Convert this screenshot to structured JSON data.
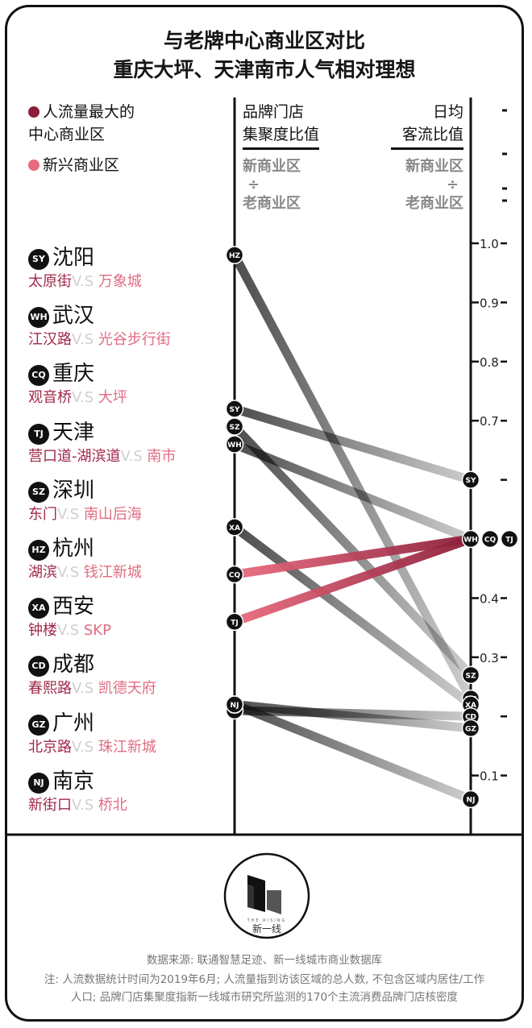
{
  "header": {
    "title_line1": "与老牌中心商业区对比",
    "title_line2": "重庆大坪、天津南市人气相对理想"
  },
  "legend": {
    "old_label_line1": "人流量最大的",
    "old_label_line2": "中心商业区",
    "new_label": "新兴商业区",
    "old_color": "#8b1e3a",
    "new_color": "#ea6a7e"
  },
  "columns": {
    "left_title_line1": "品牌门店",
    "left_title_line2": "集聚度比值",
    "right_title_line1": "日均",
    "right_title_line2": "客流比值",
    "numerator": "新商业区",
    "divide": "÷",
    "denominator": "老商业区"
  },
  "cities": [
    {
      "code": "SY",
      "name": "沈阳",
      "old": "太原街",
      "vs": "V.S",
      "new": "万象城"
    },
    {
      "code": "WH",
      "name": "武汉",
      "old": "江汉路",
      "vs": "V.S",
      "new": "光谷步行街"
    },
    {
      "code": "CQ",
      "name": "重庆",
      "old": "观音桥",
      "vs": "V.S",
      "new": "大坪"
    },
    {
      "code": "TJ",
      "name": "天津",
      "old": "营口道-湖滨道",
      "vs": "V.S",
      "new": "南市"
    },
    {
      "code": "SZ",
      "name": "深圳",
      "old": "东门",
      "vs": "V.S",
      "new": "南山后海"
    },
    {
      "code": "HZ",
      "name": "杭州",
      "old": "湖滨",
      "vs": "V.S",
      "new": "钱江新城"
    },
    {
      "code": "XA",
      "name": "西安",
      "old": "钟楼",
      "vs": "V.S",
      "new": "SKP"
    },
    {
      "code": "CD",
      "name": "成都",
      "old": "春熙路",
      "vs": "V.S",
      "new": "凯德天府"
    },
    {
      "code": "GZ",
      "name": "广州",
      "old": "北京路",
      "vs": "V.S",
      "new": "珠江新城"
    },
    {
      "code": "NJ",
      "name": "南京",
      "old": "新街口",
      "vs": "V.S",
      "new": "桥北"
    }
  ],
  "chart_data": {
    "type": "line",
    "axis_ticks": [
      0.1,
      0.3,
      0.4,
      0.7,
      0.8,
      0.9,
      1.0
    ],
    "axis_tick_labels": [
      "0.1",
      "0.3",
      "0.4",
      "0.7",
      "0.8",
      "0.9",
      "1.0"
    ],
    "ylim": [
      0,
      1.05
    ],
    "series": [
      {
        "code": "SY",
        "store_ratio": 0.72,
        "traffic_ratio": 0.6,
        "highlight": false
      },
      {
        "code": "WH",
        "store_ratio": 0.66,
        "traffic_ratio": 0.5,
        "highlight": false
      },
      {
        "code": "CQ",
        "store_ratio": 0.44,
        "traffic_ratio": 0.5,
        "highlight": true
      },
      {
        "code": "TJ",
        "store_ratio": 0.36,
        "traffic_ratio": 0.5,
        "highlight": true
      },
      {
        "code": "SZ",
        "store_ratio": 0.69,
        "traffic_ratio": 0.27,
        "highlight": false
      },
      {
        "code": "HZ",
        "store_ratio": 0.98,
        "traffic_ratio": 0.23,
        "highlight": false
      },
      {
        "code": "XA",
        "store_ratio": 0.52,
        "traffic_ratio": 0.22,
        "highlight": false
      },
      {
        "code": "CD",
        "store_ratio": 0.21,
        "traffic_ratio": 0.2,
        "highlight": false
      },
      {
        "code": "GZ",
        "store_ratio": 0.22,
        "traffic_ratio": 0.18,
        "highlight": false
      },
      {
        "code": "NJ",
        "store_ratio": 0.22,
        "traffic_ratio": 0.06,
        "highlight": false
      }
    ]
  },
  "logo": {
    "name": "新一线",
    "tagline": "THE RISING"
  },
  "footer": {
    "source": "数据来源: 联通智慧足迹、新一线城市商业数据库",
    "note_line1": "注: 人流数据统计时间为2019年6月; 人流量指到访该区域的总人数, 不包含区域内居住/工作",
    "note_line2": "人口; 品牌门店集聚度指新一线城市研究所监测的170个主流消费品牌门店核密度"
  }
}
